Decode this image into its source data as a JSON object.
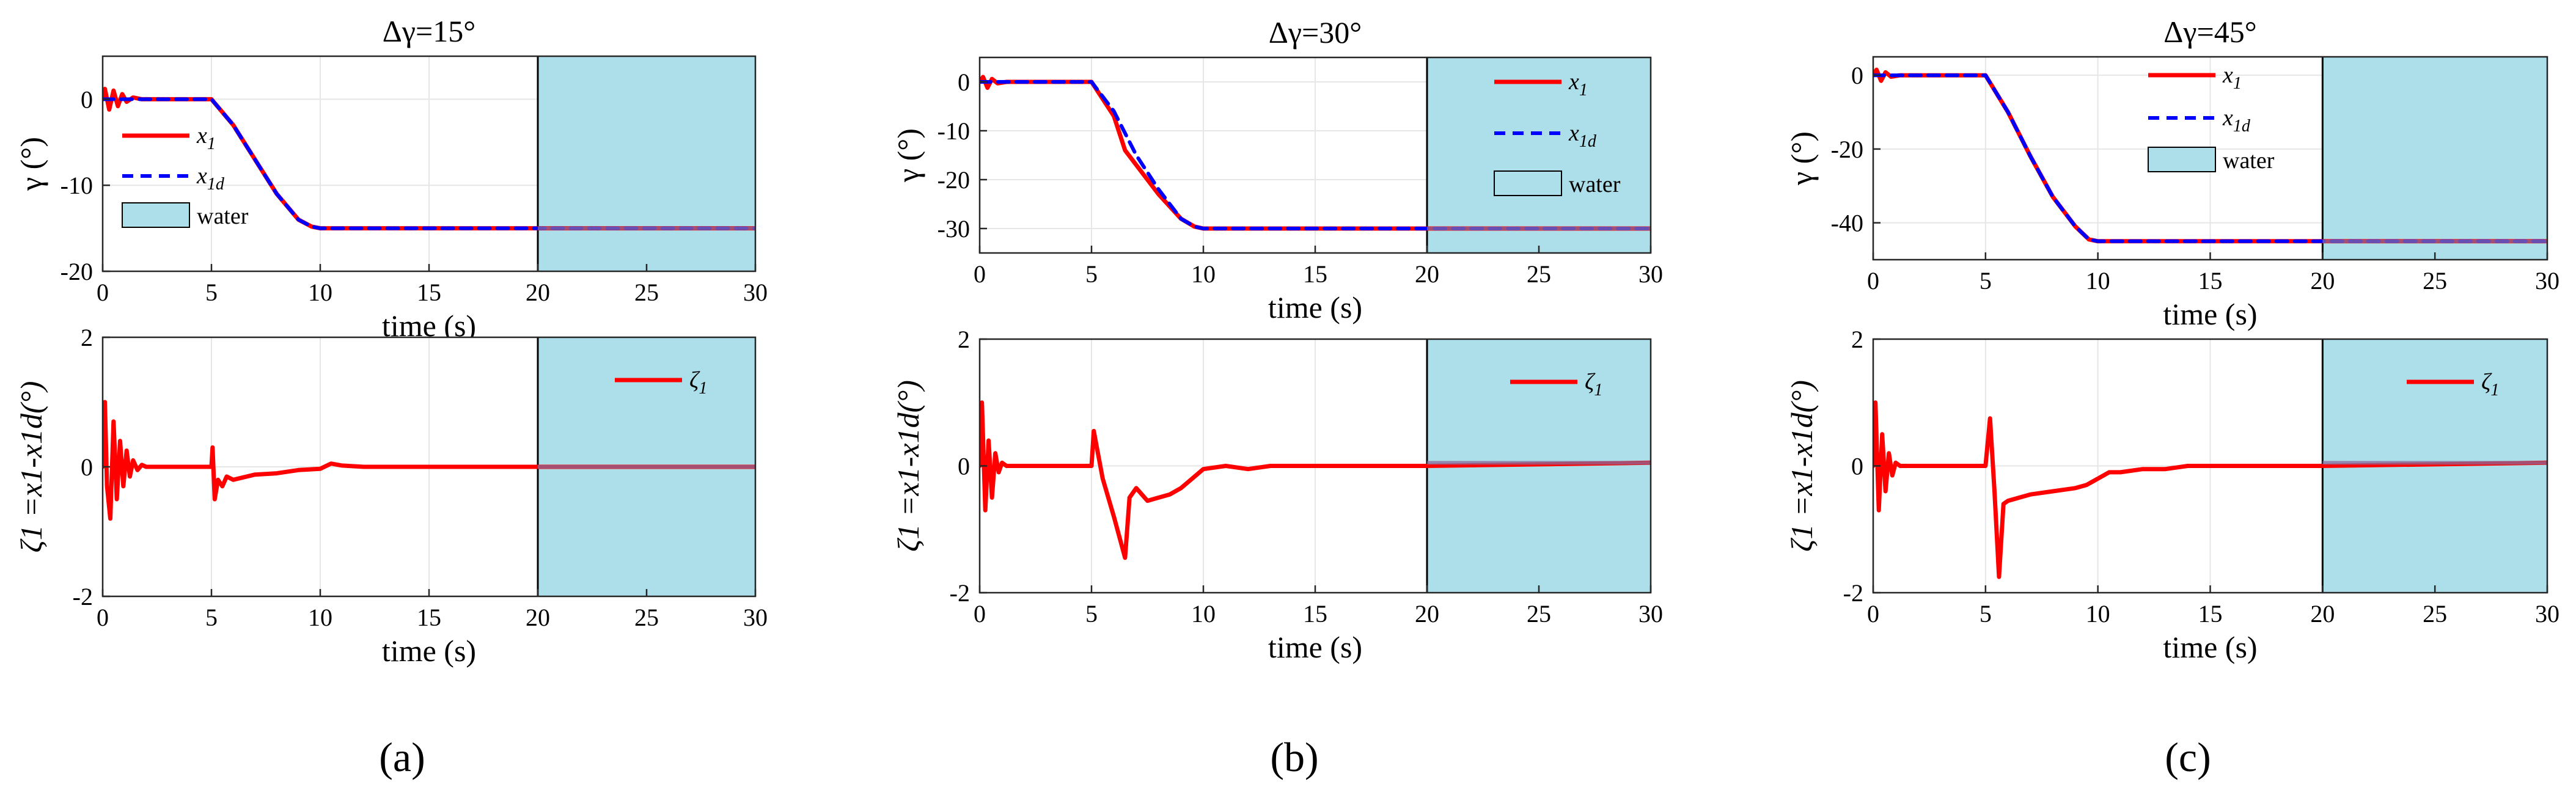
{
  "colors": {
    "actual": "#ff0000",
    "desired": "#0000ff",
    "water": "#acdfea",
    "water_edge": "#000000",
    "overlap": "#8a6a9a"
  },
  "captions": [
    "(a)",
    "(b)",
    "(c)"
  ],
  "chart_data": [
    {
      "id": "a-top",
      "type": "line",
      "title": "Δγ=15°",
      "xlabel": "time (s)",
      "ylabel": "γ (°)",
      "xlim": [
        0,
        30
      ],
      "ylim": [
        -20,
        5
      ],
      "xticks": [
        0,
        5,
        10,
        15,
        20,
        25,
        30
      ],
      "yticks": [
        0,
        -10,
        -20
      ],
      "ytick_labels": [
        "0",
        "-10",
        "-20"
      ],
      "water_region": [
        20,
        30
      ],
      "legend": [
        {
          "name": "x",
          "sub": "1"
        },
        {
          "name": "x",
          "sub": "1d"
        },
        {
          "name": "water",
          "sub": ""
        }
      ],
      "series": [
        {
          "name": "x1",
          "x": [
            0,
            0.1,
            0.3,
            0.5,
            0.7,
            0.9,
            1.1,
            1.4,
            1.8,
            5,
            6,
            7,
            8,
            9,
            9.6,
            10,
            30
          ],
          "y": [
            0,
            1.2,
            -1.2,
            1.0,
            -0.8,
            0.6,
            -0.3,
            0.2,
            0,
            0,
            -3,
            -7,
            -11,
            -14,
            -14.8,
            -15,
            -15
          ]
        },
        {
          "name": "x1d",
          "x": [
            0,
            5,
            6,
            7,
            8,
            9,
            9.6,
            10,
            30
          ],
          "y": [
            0,
            0,
            -3,
            -7,
            -11,
            -14,
            -14.8,
            -15,
            -15
          ]
        }
      ]
    },
    {
      "id": "a-bottom",
      "type": "line",
      "title": "",
      "xlabel": "time (s)",
      "ylabel": "ζ1 =x1-x1d(°)",
      "xlim": [
        0,
        30
      ],
      "ylim": [
        -2,
        2
      ],
      "xticks": [
        0,
        5,
        10,
        15,
        20,
        25,
        30
      ],
      "yticks": [
        2,
        0,
        -2
      ],
      "ytick_labels": [
        "2",
        "0",
        "-2"
      ],
      "water_region": [
        20,
        30
      ],
      "legend": [
        {
          "name": "ζ",
          "sub": "1"
        }
      ],
      "series": [
        {
          "name": "zeta1",
          "x": [
            0,
            0.1,
            0.2,
            0.35,
            0.5,
            0.65,
            0.8,
            0.95,
            1.1,
            1.25,
            1.4,
            1.6,
            1.8,
            2.0,
            3,
            5,
            5.05,
            5.15,
            5.3,
            5.5,
            5.7,
            6,
            7,
            8,
            9,
            10,
            10.5,
            11,
            12,
            14,
            20,
            30
          ],
          "y": [
            0,
            1.0,
            -0.3,
            -0.8,
            0.7,
            -0.5,
            0.4,
            -0.3,
            0.25,
            -0.15,
            0.1,
            -0.05,
            0.03,
            0,
            0,
            0,
            0.3,
            -0.5,
            -0.2,
            -0.3,
            -0.15,
            -0.2,
            -0.12,
            -0.1,
            -0.05,
            -0.03,
            0.05,
            0.02,
            0,
            0,
            0,
            0
          ]
        }
      ]
    },
    {
      "id": "b-top",
      "type": "line",
      "title": "Δγ=30°",
      "xlabel": "time (s)",
      "ylabel": "γ (°)",
      "xlim": [
        0,
        30
      ],
      "ylim": [
        -35,
        5
      ],
      "xticks": [
        0,
        5,
        10,
        15,
        20,
        25,
        30
      ],
      "yticks": [
        0,
        -10,
        -20,
        -30
      ],
      "ytick_labels": [
        "0",
        "-10",
        "-20",
        "-30"
      ],
      "water_region": [
        20,
        30
      ],
      "legend": [
        {
          "name": "x",
          "sub": "1"
        },
        {
          "name": "x",
          "sub": "1d"
        },
        {
          "name": "water",
          "sub": ""
        }
      ],
      "series": [
        {
          "name": "x1",
          "x": [
            0,
            0.15,
            0.35,
            0.55,
            0.8,
            1.2,
            5,
            6,
            6.5,
            7,
            8,
            9,
            9.6,
            10,
            30
          ],
          "y": [
            0,
            1.0,
            -1.2,
            0.6,
            -0.3,
            0,
            0,
            -7,
            -14,
            -17,
            -23,
            -28,
            -29.6,
            -30,
            -30
          ]
        },
        {
          "name": "x1d",
          "x": [
            0,
            5,
            6,
            7,
            8,
            9,
            9.6,
            10,
            30
          ],
          "y": [
            0,
            0,
            -6,
            -15,
            -22,
            -28,
            -29.6,
            -30,
            -30
          ]
        }
      ]
    },
    {
      "id": "b-bottom",
      "type": "line",
      "title": "",
      "xlabel": "time (s)",
      "ylabel": "ζ1 =x1-x1d(°)",
      "xlim": [
        0,
        30
      ],
      "ylim": [
        -2,
        2
      ],
      "xticks": [
        0,
        5,
        10,
        15,
        20,
        25,
        30
      ],
      "yticks": [
        2,
        0,
        -2
      ],
      "ytick_labels": [
        "2",
        "0",
        "-2"
      ],
      "water_region": [
        20,
        30
      ],
      "legend": [
        {
          "name": "ζ",
          "sub": "1"
        }
      ],
      "series": [
        {
          "name": "zeta1",
          "x": [
            0,
            0.1,
            0.25,
            0.4,
            0.55,
            0.7,
            0.85,
            1.0,
            1.2,
            1.5,
            5,
            5.1,
            5.5,
            6,
            6.5,
            6.7,
            7,
            7.5,
            8,
            8.5,
            9,
            9.5,
            10,
            11,
            12,
            13,
            20,
            30
          ],
          "y": [
            0,
            1.0,
            -0.7,
            0.4,
            -0.5,
            0.2,
            -0.1,
            0.05,
            0,
            0,
            0,
            0.55,
            -0.2,
            -0.8,
            -1.45,
            -0.5,
            -0.35,
            -0.55,
            -0.5,
            -0.45,
            -0.35,
            -0.2,
            -0.05,
            0,
            -0.05,
            0,
            0,
            0.05
          ]
        }
      ]
    },
    {
      "id": "c-top",
      "type": "line",
      "title": "Δγ=45°",
      "xlabel": "time (s)",
      "ylabel": "γ (°)",
      "xlim": [
        0,
        30
      ],
      "ylim": [
        -50,
        5
      ],
      "xticks": [
        0,
        5,
        10,
        15,
        20,
        25,
        30
      ],
      "yticks": [
        0,
        -20,
        -40
      ],
      "ytick_labels": [
        "0",
        "-20",
        "-40"
      ],
      "water_region": [
        20,
        30
      ],
      "legend": [
        {
          "name": "x",
          "sub": "1"
        },
        {
          "name": "x",
          "sub": "1d"
        },
        {
          "name": "water",
          "sub": ""
        }
      ],
      "series": [
        {
          "name": "x1",
          "x": [
            0,
            0.15,
            0.35,
            0.55,
            0.8,
            1.2,
            5,
            6,
            7,
            8,
            9,
            9.6,
            10,
            30
          ],
          "y": [
            0,
            1.5,
            -1.5,
            0.8,
            -0.4,
            0,
            0,
            -10,
            -22,
            -33,
            -41,
            -44.5,
            -45,
            -45
          ]
        },
        {
          "name": "x1d",
          "x": [
            0,
            5,
            6,
            7,
            8,
            9,
            9.6,
            10,
            30
          ],
          "y": [
            0,
            0,
            -10,
            -22,
            -33,
            -41,
            -44.5,
            -45,
            -45
          ]
        }
      ]
    },
    {
      "id": "c-bottom",
      "type": "line",
      "title": "",
      "xlabel": "time (s)",
      "ylabel": "ζ1 =x1-x1d(°)",
      "xlim": [
        0,
        30
      ],
      "ylim": [
        -2,
        2
      ],
      "xticks": [
        0,
        5,
        10,
        15,
        20,
        25,
        30
      ],
      "yticks": [
        2,
        0,
        -2
      ],
      "ytick_labels": [
        "2",
        "0",
        "-2"
      ],
      "water_region": [
        20,
        30
      ],
      "legend": [
        {
          "name": "ζ",
          "sub": "1"
        }
      ],
      "series": [
        {
          "name": "zeta1",
          "x": [
            0,
            0.1,
            0.25,
            0.4,
            0.55,
            0.7,
            0.85,
            1.0,
            1.2,
            1.5,
            5,
            5.2,
            5.4,
            5.6,
            5.8,
            6.0,
            6.5,
            7,
            8,
            9,
            9.5,
            10,
            10.5,
            11,
            12,
            13,
            14,
            20,
            30
          ],
          "y": [
            0,
            1.0,
            -0.7,
            0.5,
            -0.4,
            0.2,
            -0.15,
            0.05,
            0,
            0,
            0,
            0.75,
            -0.4,
            -1.75,
            -0.6,
            -0.55,
            -0.5,
            -0.45,
            -0.4,
            -0.35,
            -0.3,
            -0.2,
            -0.1,
            -0.1,
            -0.05,
            -0.05,
            0,
            0,
            0.05
          ]
        }
      ]
    }
  ]
}
